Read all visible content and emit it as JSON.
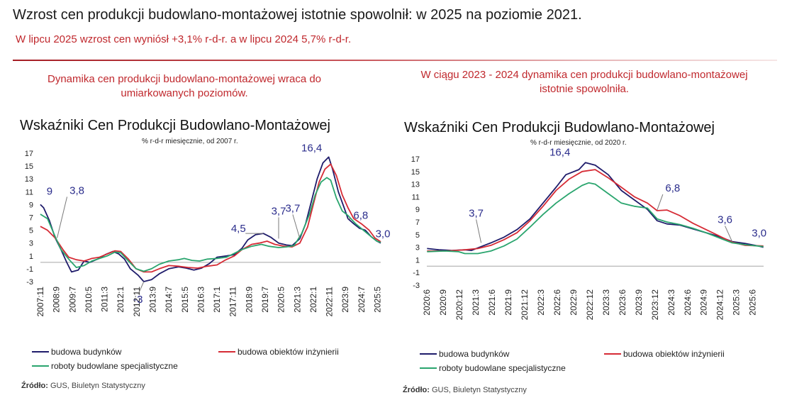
{
  "header": {
    "title": "Wzrost cen produkcji budowlano-montażowej istotnie spowolnił: w 2025 na poziomie 2021.",
    "subtitle": "W lipcu 2025 wzrost cen wyniósł +3,1% r-d-r. a w lipcu 2024 5,7% r-d-r."
  },
  "left": {
    "caption_line1": "Dynamika cen produkcji budowlano-montażowej wraca do",
    "caption_line2": "umiarkowanych poziomów.",
    "source_label": "Źródło:",
    "source_text": " GUS, Biuletyn Statystyczny"
  },
  "right": {
    "caption_line1": "W ciągu 2023 - 2024 dynamika cen produkcji budowlano-montażowej",
    "caption_line2": "istotnie spowolniła.",
    "source_label": "Źródło:",
    "source_text": " GUS, Biuletyn Statystyczny"
  },
  "colors": {
    "budynki": "#1f1c6b",
    "inzynierii": "#d62b35",
    "specjalistyczne": "#2aa56e",
    "annotation": "#2b2d8c",
    "zero_line": "#a6a6a6"
  },
  "chart_data": [
    {
      "type": "line",
      "title": "Wskaźniki Cen Produkcji Budowlano-Montażowej",
      "subtitle": "% r-d-r miesięcznie, od 2007 r.",
      "ylim": [
        -3,
        17
      ],
      "yticks": [
        17,
        15,
        13,
        11,
        9,
        7,
        5,
        3,
        1,
        -1,
        -3
      ],
      "x_range": [
        2007.833,
        2025.5
      ],
      "xticks": [
        "2007:11",
        "2008:9",
        "2009:7",
        "2010:5",
        "2011:3",
        "2012:1",
        "2012:11",
        "2013:9",
        "2014:7",
        "2015:5",
        "2016:3",
        "2017:1",
        "2017:11",
        "2018:9",
        "2019:7",
        "2020:5",
        "2021:3",
        "2022:1",
        "2022:11",
        "2023:9",
        "2024:7",
        "2025:5"
      ],
      "legend": "bottom",
      "series": [
        {
          "name": "budowa budynków",
          "color_key": "budynki",
          "x": [
            2007.83,
            2008.0,
            2008.3,
            2008.6,
            2008.9,
            2009.2,
            2009.45,
            2009.8,
            2010.1,
            2010.4,
            2010.8,
            2011.2,
            2011.6,
            2011.9,
            2012.2,
            2012.5,
            2012.9,
            2013.2,
            2013.6,
            2014.0,
            2014.5,
            2015.0,
            2015.4,
            2015.8,
            2016.2,
            2016.6,
            2017.0,
            2017.5,
            2017.9,
            2018.3,
            2018.6,
            2019.0,
            2019.4,
            2019.8,
            2020.2,
            2020.6,
            2020.9,
            2021.3,
            2021.6,
            2021.9,
            2022.2,
            2022.5,
            2022.8,
            2023.0,
            2023.3,
            2023.6,
            2023.8,
            2024.1,
            2024.4,
            2024.7,
            2025.0,
            2025.3,
            2025.5
          ],
          "y": [
            9.0,
            8.5,
            6.5,
            3.8,
            2.0,
            0.0,
            -1.5,
            -1.2,
            0.2,
            0.0,
            0.5,
            1.2,
            1.7,
            1.3,
            0.5,
            -1.0,
            -2.0,
            -3.0,
            -2.7,
            -1.8,
            -1.0,
            -0.7,
            -0.9,
            -1.2,
            -0.9,
            -0.2,
            0.8,
            1.0,
            1.2,
            2.2,
            3.5,
            4.3,
            4.5,
            3.9,
            3.0,
            2.7,
            2.6,
            3.7,
            6.0,
            9.5,
            13.0,
            15.5,
            16.4,
            14.5,
            11.0,
            8.5,
            6.8,
            6.0,
            5.3,
            5.0,
            4.0,
            3.3,
            3.0
          ]
        },
        {
          "name": "budowa obiektów inżynierii",
          "color_key": "inzynierii",
          "x": [
            2007.83,
            2008.2,
            2008.6,
            2009.0,
            2009.3,
            2009.7,
            2010.1,
            2010.5,
            2010.9,
            2011.3,
            2011.7,
            2012.0,
            2012.4,
            2012.8,
            2013.2,
            2013.6,
            2014.0,
            2014.5,
            2015.0,
            2015.5,
            2016.0,
            2016.5,
            2017.0,
            2017.4,
            2017.9,
            2018.3,
            2018.8,
            2019.2,
            2019.6,
            2020.0,
            2020.5,
            2020.9,
            2021.3,
            2021.7,
            2022.0,
            2022.3,
            2022.6,
            2022.9,
            2023.2,
            2023.5,
            2023.8,
            2024.1,
            2024.5,
            2024.9,
            2025.2,
            2025.5
          ],
          "y": [
            5.6,
            5.0,
            3.8,
            2.0,
            0.8,
            0.4,
            0.2,
            0.6,
            0.8,
            1.3,
            1.8,
            1.7,
            0.5,
            -1.0,
            -1.5,
            -1.5,
            -1.0,
            -0.5,
            -0.6,
            -0.8,
            -0.9,
            -0.6,
            -0.4,
            0.3,
            1.0,
            2.0,
            2.8,
            3.0,
            3.3,
            2.8,
            2.5,
            2.4,
            3.0,
            5.5,
            9.0,
            12.5,
            14.5,
            15.3,
            13.5,
            10.5,
            8.5,
            6.8,
            6.0,
            5.0,
            3.8,
            3.2
          ]
        },
        {
          "name": "roboty budowlane specjalistyczne",
          "color_key": "specjalistyczne",
          "x": [
            2007.83,
            2008.2,
            2008.6,
            2008.9,
            2009.3,
            2009.7,
            2010.1,
            2010.5,
            2010.9,
            2011.3,
            2011.7,
            2012.0,
            2012.4,
            2012.8,
            2013.2,
            2013.6,
            2014.0,
            2014.5,
            2015.0,
            2015.3,
            2015.7,
            2016.1,
            2016.5,
            2017.0,
            2017.5,
            2017.9,
            2018.3,
            2018.8,
            2019.3,
            2019.7,
            2020.2,
            2020.6,
            2021.0,
            2021.4,
            2021.8,
            2022.1,
            2022.4,
            2022.7,
            2022.9,
            2023.2,
            2023.5,
            2023.8,
            2024.2,
            2024.6,
            2025.0,
            2025.3,
            2025.5
          ],
          "y": [
            7.5,
            6.8,
            4.0,
            2.0,
            0.5,
            -0.8,
            -0.5,
            0.2,
            0.6,
            1.0,
            1.6,
            1.5,
            0.2,
            -1.0,
            -1.4,
            -1.0,
            -0.3,
            0.2,
            0.4,
            0.6,
            0.3,
            0.2,
            0.5,
            0.6,
            0.8,
            1.4,
            2.0,
            2.5,
            2.8,
            2.5,
            2.3,
            2.4,
            2.6,
            4.5,
            7.5,
            10.5,
            12.5,
            13.2,
            12.8,
            10.0,
            8.0,
            7.3,
            6.0,
            5.0,
            4.0,
            3.3,
            3.1
          ]
        }
      ],
      "annotations": [
        {
          "text": "9",
          "x": 2007.83,
          "y": 9.0
        },
        {
          "text": "3,8",
          "x": 2008.7,
          "y": 3.8
        },
        {
          "text": "-3",
          "x": 2013.2,
          "y": -3.0
        },
        {
          "text": "4,5",
          "x": 2019.4,
          "y": 4.5
        },
        {
          "text": "3,7",
          "x": 2020.2,
          "y": 3.7
        },
        {
          "text": "3,7",
          "x": 2021.3,
          "y": 3.7
        },
        {
          "text": "16,4",
          "x": 2022.8,
          "y": 16.4
        },
        {
          "text": "6,8",
          "x": 2023.8,
          "y": 6.8
        },
        {
          "text": "3,0",
          "x": 2025.5,
          "y": 3.0
        }
      ]
    },
    {
      "type": "line",
      "title": "Wskaźniki Cen Produkcji Budowlano-Montażowej",
      "subtitle": "% r-d-r miesięcznie, od 2020 r.",
      "ylim": [
        -3,
        17
      ],
      "yticks": [
        17,
        15,
        13,
        11,
        9,
        7,
        5,
        3,
        1,
        -1,
        -3
      ],
      "x_range": [
        2020.417,
        2025.583
      ],
      "xticks": [
        "2020:6",
        "2020:9",
        "2020:12",
        "2021:3",
        "2021:6",
        "2021:9",
        "2021:12",
        "2022:3",
        "2022:6",
        "2022:9",
        "2022:12",
        "2023:3",
        "2023:6",
        "2023:9",
        "2023:12",
        "2024:3",
        "2024:6",
        "2024:9",
        "2024:12",
        "2025:3",
        "2025:6"
      ],
      "legend": "bottom",
      "series": [
        {
          "name": "budowa budynków",
          "color_key": "budynki",
          "x": [
            2020.42,
            2020.6,
            2020.8,
            2021.0,
            2021.1,
            2021.25,
            2021.4,
            2021.6,
            2021.8,
            2022.0,
            2022.2,
            2022.4,
            2022.55,
            2022.75,
            2022.85,
            2023.0,
            2023.2,
            2023.4,
            2023.6,
            2023.8,
            2023.95,
            2024.1,
            2024.3,
            2024.5,
            2024.7,
            2024.9,
            2025.1,
            2025.3,
            2025.5,
            2025.58
          ],
          "y": [
            2.8,
            2.6,
            2.5,
            2.6,
            2.5,
            3.1,
            3.7,
            4.6,
            5.8,
            7.5,
            10.0,
            12.5,
            14.5,
            15.3,
            16.4,
            16.0,
            14.5,
            12.0,
            10.5,
            9.0,
            7.2,
            6.7,
            6.5,
            5.9,
            5.3,
            4.7,
            3.9,
            3.6,
            3.2,
            3.0
          ]
        },
        {
          "name": "budowa obiektów inżynierii",
          "color_key": "inzynierii",
          "x": [
            2020.42,
            2020.7,
            2021.0,
            2021.2,
            2021.4,
            2021.6,
            2021.8,
            2022.0,
            2022.2,
            2022.4,
            2022.6,
            2022.8,
            2023.0,
            2023.2,
            2023.4,
            2023.6,
            2023.8,
            2023.95,
            2024.1,
            2024.3,
            2024.5,
            2024.7,
            2024.9,
            2025.1,
            2025.3,
            2025.58
          ],
          "y": [
            2.4,
            2.4,
            2.6,
            2.8,
            3.3,
            4.2,
            5.3,
            7.2,
            9.5,
            12.0,
            13.8,
            15.0,
            15.3,
            14.0,
            12.5,
            11.0,
            10.0,
            8.8,
            8.9,
            8.0,
            6.8,
            5.8,
            4.8,
            3.8,
            3.3,
            3.2
          ]
        },
        {
          "name": "roboty budowlane specjalistyczne",
          "color_key": "specjalistyczne",
          "x": [
            2020.42,
            2020.7,
            2020.9,
            2021.0,
            2021.2,
            2021.4,
            2021.6,
            2021.8,
            2022.0,
            2022.2,
            2022.4,
            2022.6,
            2022.8,
            2022.9,
            2023.0,
            2023.2,
            2023.4,
            2023.6,
            2023.8,
            2023.95,
            2024.1,
            2024.3,
            2024.5,
            2024.7,
            2024.9,
            2025.1,
            2025.3,
            2025.58
          ],
          "y": [
            2.3,
            2.4,
            2.3,
            2.0,
            2.0,
            2.4,
            3.2,
            4.3,
            6.2,
            8.2,
            10.0,
            11.5,
            12.8,
            13.2,
            13.0,
            11.5,
            10.0,
            9.5,
            9.2,
            7.5,
            7.0,
            6.6,
            6.0,
            5.3,
            4.5,
            3.7,
            3.4,
            3.1
          ]
        }
      ],
      "annotations": [
        {
          "text": "3,7",
          "x": 2021.25,
          "y": 3.7
        },
        {
          "text": "16,4",
          "x": 2022.85,
          "y": 16.4
        },
        {
          "text": "6,8",
          "x": 2023.95,
          "y": 8.9
        },
        {
          "text": "3,6",
          "x": 2025.1,
          "y": 3.9
        },
        {
          "text": "3,0",
          "x": 2025.58,
          "y": 3.0
        }
      ]
    }
  ]
}
